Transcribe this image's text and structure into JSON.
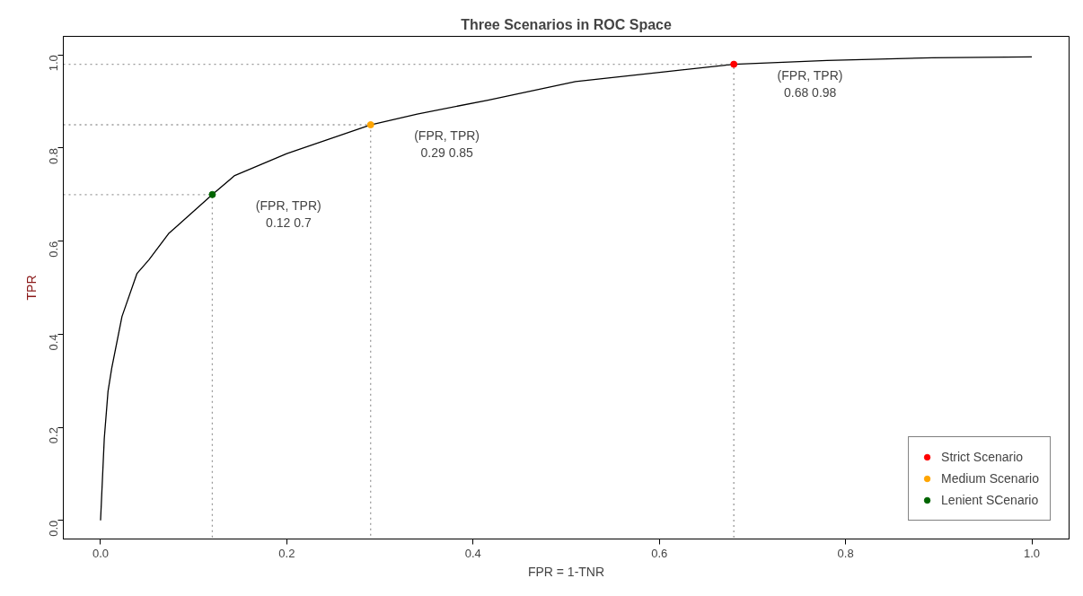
{
  "chart_data": {
    "type": "line",
    "title": "Three Scenarios in ROC Space",
    "xlabel": "FPR = 1-TNR",
    "ylabel": "TPR",
    "xlim": [
      -0.04,
      1.04
    ],
    "ylim": [
      -0.04,
      1.04
    ],
    "xticks": [
      {
        "value": 0,
        "label": "0.0"
      },
      0.2,
      0.4,
      0.6,
      0.8,
      {
        "value": 1,
        "label": "1.0"
      }
    ],
    "yticks": [
      {
        "value": 0,
        "label": "0.0"
      },
      0.2,
      0.4,
      0.6,
      0.8,
      {
        "value": 1,
        "label": "1.0"
      }
    ],
    "grid": false,
    "legend": "bottom right",
    "series": [
      {
        "color": "#000000",
        "line_style": "solid",
        "x": [
          0,
          0.004,
          0.008,
          0.012,
          0.023,
          0.039,
          0.052,
          0.073,
          0.12,
          0.144,
          0.2,
          0.29,
          0.34,
          0.416,
          0.51,
          0.607,
          0.68,
          0.78,
          0.893,
          1.0
        ],
        "values": [
          0,
          0.176,
          0.277,
          0.327,
          0.438,
          0.53,
          0.56,
          0.616,
          0.7,
          0.741,
          0.788,
          0.85,
          0.873,
          0.903,
          0.943,
          0.964,
          0.98,
          0.988,
          0.994,
          0.996
        ]
      },
      {
        "color": "#999999",
        "line_style": "dotted",
        "x": [
          -0.04,
          0.12,
          0.12
        ],
        "values": [
          0.7,
          0.7,
          -0.04
        ]
      },
      {
        "color": "#999999",
        "line_style": "dotted",
        "x": [
          -0.04,
          0.29,
          0.29
        ],
        "values": [
          0.85,
          0.85,
          -0.04
        ]
      },
      {
        "color": "#999999",
        "line_style": "dotted",
        "x": [
          -0.04,
          0.68,
          0.68
        ],
        "values": [
          0.98,
          0.98,
          -0.04
        ]
      },
      {
        "type": "scatter",
        "name": "Strict Scenario",
        "color": "#ff0000",
        "marker": "circle",
        "x": [
          0.68
        ],
        "values": [
          0.98
        ]
      },
      {
        "type": "scatter",
        "name": "Medium Scenario",
        "color": "#ffa500",
        "marker": "circle",
        "x": [
          0.29
        ],
        "values": [
          0.85
        ]
      },
      {
        "type": "scatter",
        "name": "Lenient SCenario",
        "color": "#006400",
        "marker": "circle",
        "x": [
          0.12
        ],
        "values": [
          0.7
        ]
      }
    ],
    "annotations": [
      "(FPR, TPR)\n0.68 0.98",
      "(FPR, TPR)\n0.29 0.85",
      "(FPR, TPR)\n0.12 0.7"
    ]
  }
}
